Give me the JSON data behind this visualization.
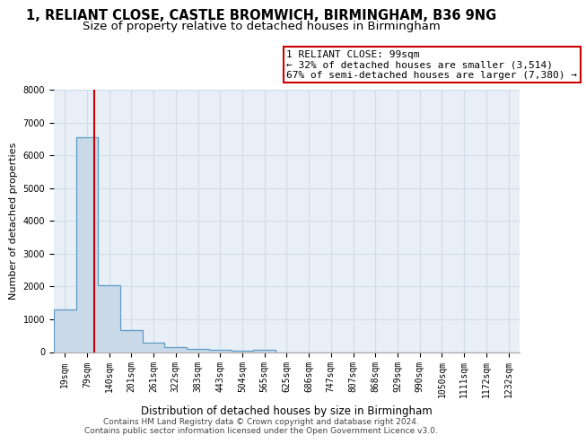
{
  "title_line1": "1, RELIANT CLOSE, CASTLE BROMWICH, BIRMINGHAM, B36 9NG",
  "title_line2": "Size of property relative to detached houses in Birmingham",
  "xlabel": "Distribution of detached houses by size in Birmingham",
  "ylabel": "Number of detached properties",
  "bar_labels": [
    "19sqm",
    "79sqm",
    "140sqm",
    "201sqm",
    "261sqm",
    "322sqm",
    "383sqm",
    "443sqm",
    "504sqm",
    "565sqm",
    "625sqm",
    "686sqm",
    "747sqm",
    "807sqm",
    "868sqm",
    "929sqm",
    "990sqm",
    "1050sqm",
    "1111sqm",
    "1172sqm",
    "1232sqm"
  ],
  "bar_values": [
    1300,
    6550,
    2050,
    680,
    290,
    150,
    90,
    55,
    30,
    70,
    0,
    0,
    0,
    0,
    0,
    0,
    0,
    0,
    0,
    0,
    0
  ],
  "bar_color": "#c9d9e8",
  "bar_edge_color": "#5b9bc4",
  "vline_color": "#cc0000",
  "annotation_text": "1 RELIANT CLOSE: 99sqm\n← 32% of detached houses are smaller (3,514)\n67% of semi-detached houses are larger (7,380) →",
  "annotation_box_color": "#cc0000",
  "ylim": [
    0,
    8000
  ],
  "yticks": [
    0,
    1000,
    2000,
    3000,
    4000,
    5000,
    6000,
    7000,
    8000
  ],
  "grid_color": "#d0dce8",
  "background_color": "#e8eff6",
  "footer_text": "Contains HM Land Registry data © Crown copyright and database right 2024.\nContains public sector information licensed under the Open Government Licence v3.0.",
  "title_fontsize": 10.5,
  "subtitle_fontsize": 9.5,
  "xlabel_fontsize": 8.5,
  "ylabel_fontsize": 8,
  "tick_fontsize": 7,
  "footer_fontsize": 6.5,
  "annot_fontsize": 8
}
